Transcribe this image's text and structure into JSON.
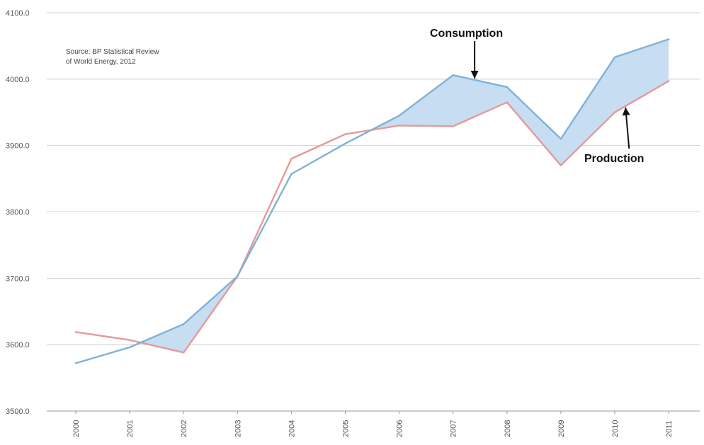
{
  "chart_data": {
    "type": "line",
    "title": "",
    "xlabel": "",
    "ylabel": "",
    "categories": [
      "2000",
      "2001",
      "2002",
      "2003",
      "2004",
      "2005",
      "2006",
      "2007",
      "2008",
      "2009",
      "2010",
      "2011"
    ],
    "series": [
      {
        "name": "Consumption",
        "color": "#7fb2d6",
        "values": [
          3572,
          3596,
          3631,
          3703,
          3857,
          3903,
          3945,
          4006,
          3988,
          3910,
          4033,
          4060
        ]
      },
      {
        "name": "Production",
        "color": "#e59a98",
        "values": [
          3619,
          3607,
          3588,
          3703,
          3880,
          3917,
          3930,
          3929,
          3965,
          3870,
          3950,
          3997
        ]
      }
    ],
    "fill_between": {
      "color": "#c6ddf2",
      "condition": "consumption_above_production"
    },
    "ylim": [
      3500,
      4100
    ],
    "yticks": [
      3500,
      3600,
      3700,
      3800,
      3900,
      4000,
      4100
    ],
    "ytick_labels": [
      "3500.0",
      "3600.0",
      "3700.0",
      "3800.0",
      "3900.0",
      "4000.0",
      "4100.0"
    ],
    "grid": "horizontal",
    "legend": "none",
    "annotations": [
      {
        "text": "Consumption",
        "series": "Consumption",
        "arrow_to_x": 2007.4
      },
      {
        "text": "Production",
        "series": "Production",
        "arrow_to_x": 2010.2
      }
    ],
    "source_note": [
      "Source: BP Statistical Review",
      "of World Energy, 2012"
    ]
  }
}
